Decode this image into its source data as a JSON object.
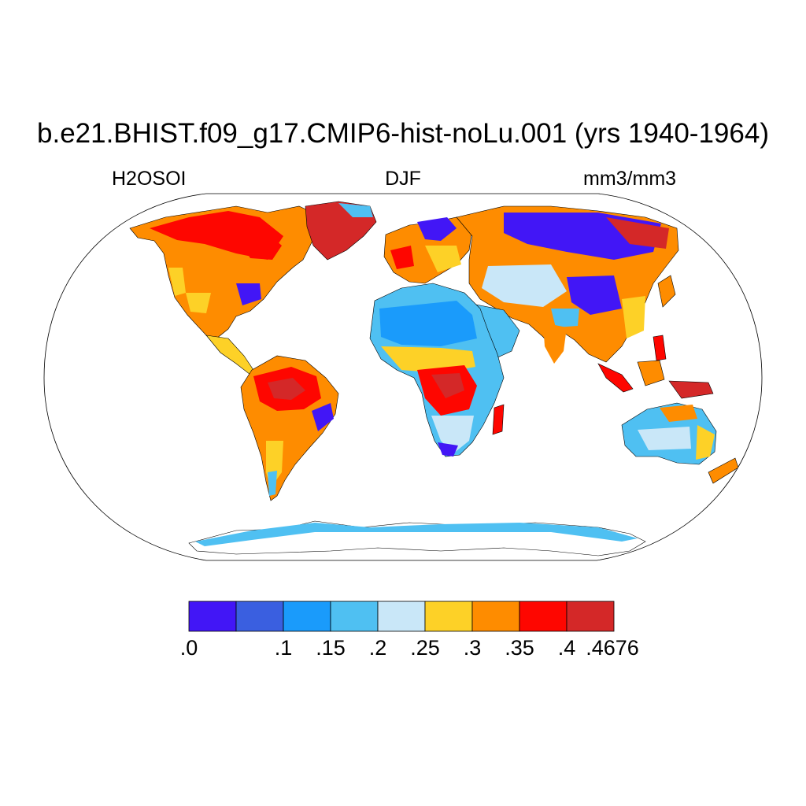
{
  "title": "b.e21.BHIST.f09_g17.CMIP6-hist-noLu.001 (yrs 1940-1964)",
  "variable": "H2OSOI",
  "season": "DJF",
  "units": "mm3/mm3",
  "colorbar": {
    "colors": [
      "#4216f6",
      "#3a5fe0",
      "#1a9bfb",
      "#4fc0f2",
      "#c9e7f8",
      "#fdd127",
      "#fe8c00",
      "#fe0600",
      "#d42828"
    ],
    "labels": [
      ".0",
      ".1",
      ".15",
      ".2",
      ".25",
      ".3",
      ".35",
      ".4",
      ".4676"
    ],
    "label_boxes": [
      0,
      2,
      3,
      4,
      5,
      6,
      7,
      8,
      9
    ]
  },
  "colors": {
    "ocean": "#ffffff",
    "coast": "#000000"
  }
}
